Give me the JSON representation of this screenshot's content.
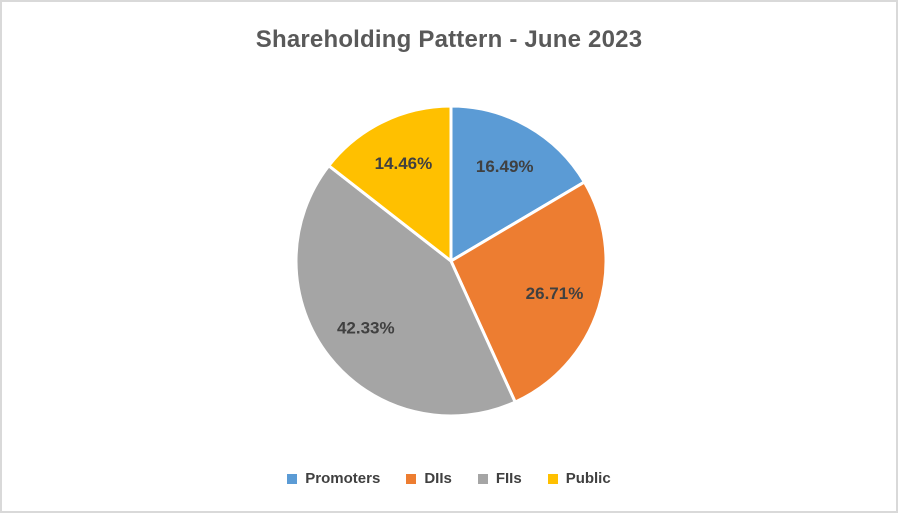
{
  "window": {
    "background_color": "#FFFFFF",
    "border_color": "#D9D9D9"
  },
  "chart_data": {
    "type": "pie",
    "title": "Shareholding Pattern - June 2023",
    "categories": [
      "Promoters",
      "DIIs",
      "FIIs",
      "Public"
    ],
    "values": [
      16.49,
      26.71,
      42.33,
      14.46
    ],
    "slice_labels": [
      "16.49%",
      "26.71%",
      "42.33%",
      "14.46%"
    ],
    "colors": [
      "#5B9BD5",
      "#ED7D31",
      "#A5A5A5",
      "#FFC000"
    ],
    "start_angle_deg": 0,
    "direction": "clockwise",
    "legend_position": "bottom",
    "title_color": "#595959",
    "label_color": "#404040",
    "legend_text_color": "#404040",
    "slice_border_color": "#FFFFFF"
  }
}
